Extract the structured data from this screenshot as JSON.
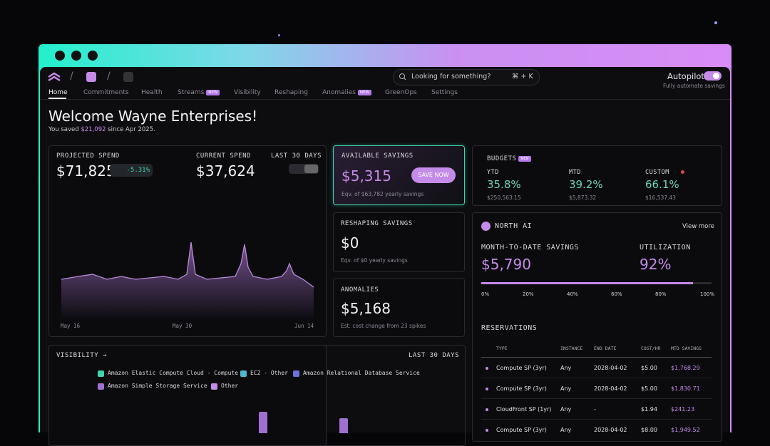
{
  "header": {
    "search_placeholder": "Looking for something?",
    "shortcut": "⌘ + K",
    "autopilot": "Autopilot",
    "autopilot_caption": "Fully automate savings"
  },
  "nav": [
    {
      "label": "Home"
    },
    {
      "label": "Commitments"
    },
    {
      "label": "Health"
    },
    {
      "label": "Streams",
      "badge": "NEW"
    },
    {
      "label": "Visibility"
    },
    {
      "label": "Reshaping"
    },
    {
      "label": "Anomalies",
      "badge": "NEW"
    },
    {
      "label": "GreenOps"
    },
    {
      "label": "Settings"
    }
  ],
  "welcome": {
    "title": "Welcome Wayne Enterprises!",
    "prefix": "You saved",
    "amount": "$21,092",
    "suffix": "since Apr 2025."
  },
  "spend_card": {
    "projected_label": "PROJECTED SPEND",
    "projected_value": "$71,825",
    "change": "-5.31%",
    "current_label": "CURRENT SPEND",
    "current_value": "$37,624",
    "range": "LAST 30 DAYS",
    "x_labels": [
      "May 16",
      "May 30",
      "Jun 14"
    ]
  },
  "available_savings": {
    "label": "AVAILABLE SAVINGS",
    "value": "$5,315",
    "button": "SAVE NOW",
    "note": "Eqv. of $63,782 yearly savings"
  },
  "reshaping": {
    "label": "RESHAPING SAVINGS",
    "value": "$0",
    "note": "Eqv. of $0 yearly savings"
  },
  "anomalies": {
    "label": "ANOMALIES",
    "value": "$5,168",
    "note": "Est. cost change from 23 spikes"
  },
  "budgets": {
    "title": "BUDGETS",
    "badge": "NEW",
    "items": [
      {
        "label": "YTD",
        "value": "35.8%",
        "amount": "$250,563.15"
      },
      {
        "label": "MTD",
        "value": "39.2%",
        "amount": "$5,873.32"
      },
      {
        "label": "CUSTOM",
        "value": "66.1%",
        "amount": "$16,537.43"
      }
    ]
  },
  "north_ai": {
    "title": "NORTH AI",
    "link": "View more",
    "mtd_label": "MONTH-TO-DATE SAVINGS",
    "mtd_value": "$5,790",
    "util_label": "UTILIZATION",
    "util_value": "92%",
    "progress_ticks": [
      "0%",
      "20%",
      "40%",
      "60%",
      "80%",
      "100%"
    ]
  },
  "reservations": {
    "title": "RESERVATIONS",
    "columns": [
      "TYPE",
      "INSTANCE",
      "END DATE",
      "COST/HR",
      "MTD SAVINGS"
    ],
    "rows": [
      [
        "Compute SP (3yr)",
        "Any",
        "2028-04-02",
        "$5.00",
        "$1,768.29"
      ],
      [
        "Compute SP (3yr)",
        "Any",
        "2028-04-02",
        "$5.00",
        "$1,830.71"
      ],
      [
        "CloudFront SP (1yr)",
        "Any",
        "-",
        "$1.94",
        "$241.23"
      ],
      [
        "Compute SP (3yr)",
        "Any",
        "2028-04-02",
        "$8.00",
        "$1,949.52"
      ]
    ]
  },
  "visibility": {
    "title": "VISIBILITY →",
    "range": "LAST 30 DAYS",
    "legend": [
      {
        "name": "Amazon Elastic Compute Cloud - Compute",
        "color": "#3fd6ad"
      },
      {
        "name": "EC2 - Other",
        "color": "#4fb6cf"
      },
      {
        "name": "Amazon Relational Database Service",
        "color": "#6b72d8"
      },
      {
        "name": "Amazon Simple Storage Service",
        "color": "#a070d0"
      },
      {
        "name": "Other",
        "color": "#c58be8"
      }
    ]
  }
}
